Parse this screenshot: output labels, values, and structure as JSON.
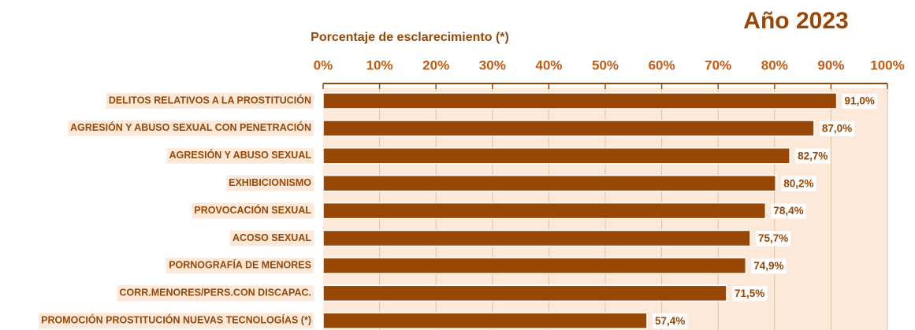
{
  "chart_data": {
    "type": "bar",
    "orientation": "horizontal",
    "title": "Año 2023",
    "x_label": "Porcentaje de esclarecimiento (*)",
    "categories": [
      "DELITOS RELATIVOS A LA PROSTITUCIÓN",
      "AGRESIÓN Y ABUSO SEXUAL CON PENETRACIÓN",
      "AGRESIÓN Y ABUSO SEXUAL",
      "EXHIBICIONISMO",
      "PROVOCACIÓN SEXUAL",
      "ACOSO SEXUAL",
      "PORNOGRAFÍA DE MENORES",
      "CORR.MENORES/PERS.CON DISCAPAC.",
      "PROMOCIÓN PROSTITUCIÓN NUEVAS TECNOLOGÍAS (*)"
    ],
    "values": [
      91.0,
      87.0,
      82.7,
      80.2,
      78.4,
      75.7,
      74.9,
      71.5,
      57.4
    ],
    "value_labels": [
      "91,0%",
      "87,0%",
      "82,7%",
      "80,2%",
      "78,4%",
      "75,7%",
      "74,9%",
      "71,5%",
      "57,4%"
    ],
    "color": "#974706",
    "xlim": [
      0,
      100
    ],
    "xticks": [
      {
        "value": 0,
        "label": "0%"
      },
      {
        "value": 10,
        "label": "10%"
      },
      {
        "value": 20,
        "label": "20%"
      },
      {
        "value": 30,
        "label": "30%"
      },
      {
        "value": 40,
        "label": "40%"
      },
      {
        "value": 50,
        "label": "50%"
      },
      {
        "value": 60,
        "label": "60%"
      },
      {
        "value": 70,
        "label": "70%"
      },
      {
        "value": 80,
        "label": "80%"
      },
      {
        "value": 90,
        "label": "90%"
      },
      {
        "value": 100,
        "label": "100%"
      }
    ],
    "grid": true
  }
}
